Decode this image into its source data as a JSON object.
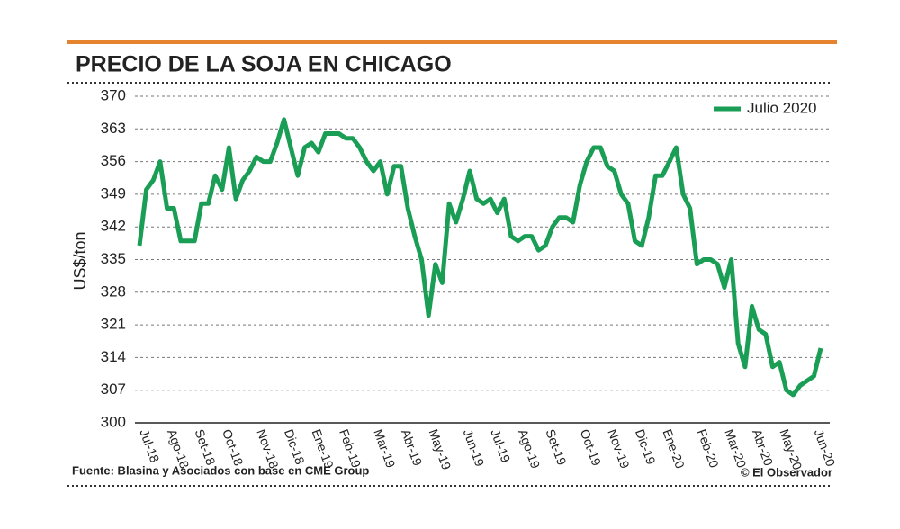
{
  "chart_data": {
    "type": "line",
    "title": "PRECIO DE LA SOJA EN CHICAGO",
    "ylabel": "US$/ton",
    "source": "Fuente: Blasina y Asociados con base en CME Group",
    "credit": "© El Observador",
    "categories": [
      null,
      "Jul-18",
      null,
      null,
      null,
      "Ago-18",
      null,
      null,
      null,
      "Set-18",
      null,
      null,
      null,
      "Oct-18",
      null,
      null,
      null,
      null,
      "Nov-18",
      null,
      null,
      null,
      "Dic-18",
      null,
      null,
      null,
      "Ene-19",
      null,
      null,
      null,
      "Feb-19",
      null,
      null,
      null,
      null,
      "Mar-19",
      null,
      null,
      null,
      "Abr-19",
      null,
      null,
      null,
      "May-19",
      null,
      null,
      null,
      null,
      "Jun-19",
      null,
      null,
      null,
      "Jul-19",
      null,
      null,
      null,
      "Ago-19",
      null,
      null,
      null,
      "Set-19",
      null,
      null,
      null,
      null,
      "Oct-19",
      null,
      null,
      null,
      "Nov-19",
      null,
      null,
      null,
      "Dic-19",
      null,
      null,
      null,
      "Ene-20",
      null,
      null,
      null,
      null,
      "Feb-20",
      null,
      null,
      null,
      "Mar-20",
      null,
      null,
      null,
      "Abr-20",
      null,
      null,
      null,
      "May-20",
      null,
      null,
      null,
      null,
      "Jun-20"
    ],
    "series": [
      {
        "name": "Julio 2020",
        "color": "#1a9e55",
        "values": [
          338,
          350,
          352,
          356,
          346,
          346,
          339,
          339,
          339,
          347,
          347,
          353,
          350,
          359,
          348,
          352,
          354,
          357,
          356,
          356,
          360,
          365,
          359,
          353,
          359,
          360,
          358,
          362,
          362,
          362,
          361,
          361,
          359,
          356,
          354,
          356,
          349,
          355,
          355,
          346,
          340,
          335,
          323,
          334,
          330,
          347,
          343,
          348,
          354,
          348,
          347,
          348,
          345,
          348,
          340,
          339,
          340,
          340,
          337,
          338,
          342,
          344,
          344,
          343,
          351,
          356,
          359,
          359,
          355,
          354,
          349,
          347,
          339,
          338,
          344,
          353,
          353,
          356,
          359,
          349,
          346,
          334,
          335,
          335,
          334,
          329,
          335,
          317,
          312,
          325,
          320,
          319,
          312,
          313,
          307,
          306,
          308,
          309,
          310,
          316
        ]
      }
    ],
    "ylim": [
      300,
      370
    ],
    "yticks": [
      300,
      307,
      314,
      321,
      328,
      335,
      342,
      349,
      356,
      363,
      370
    ],
    "grid": true,
    "legend": "top-right"
  }
}
